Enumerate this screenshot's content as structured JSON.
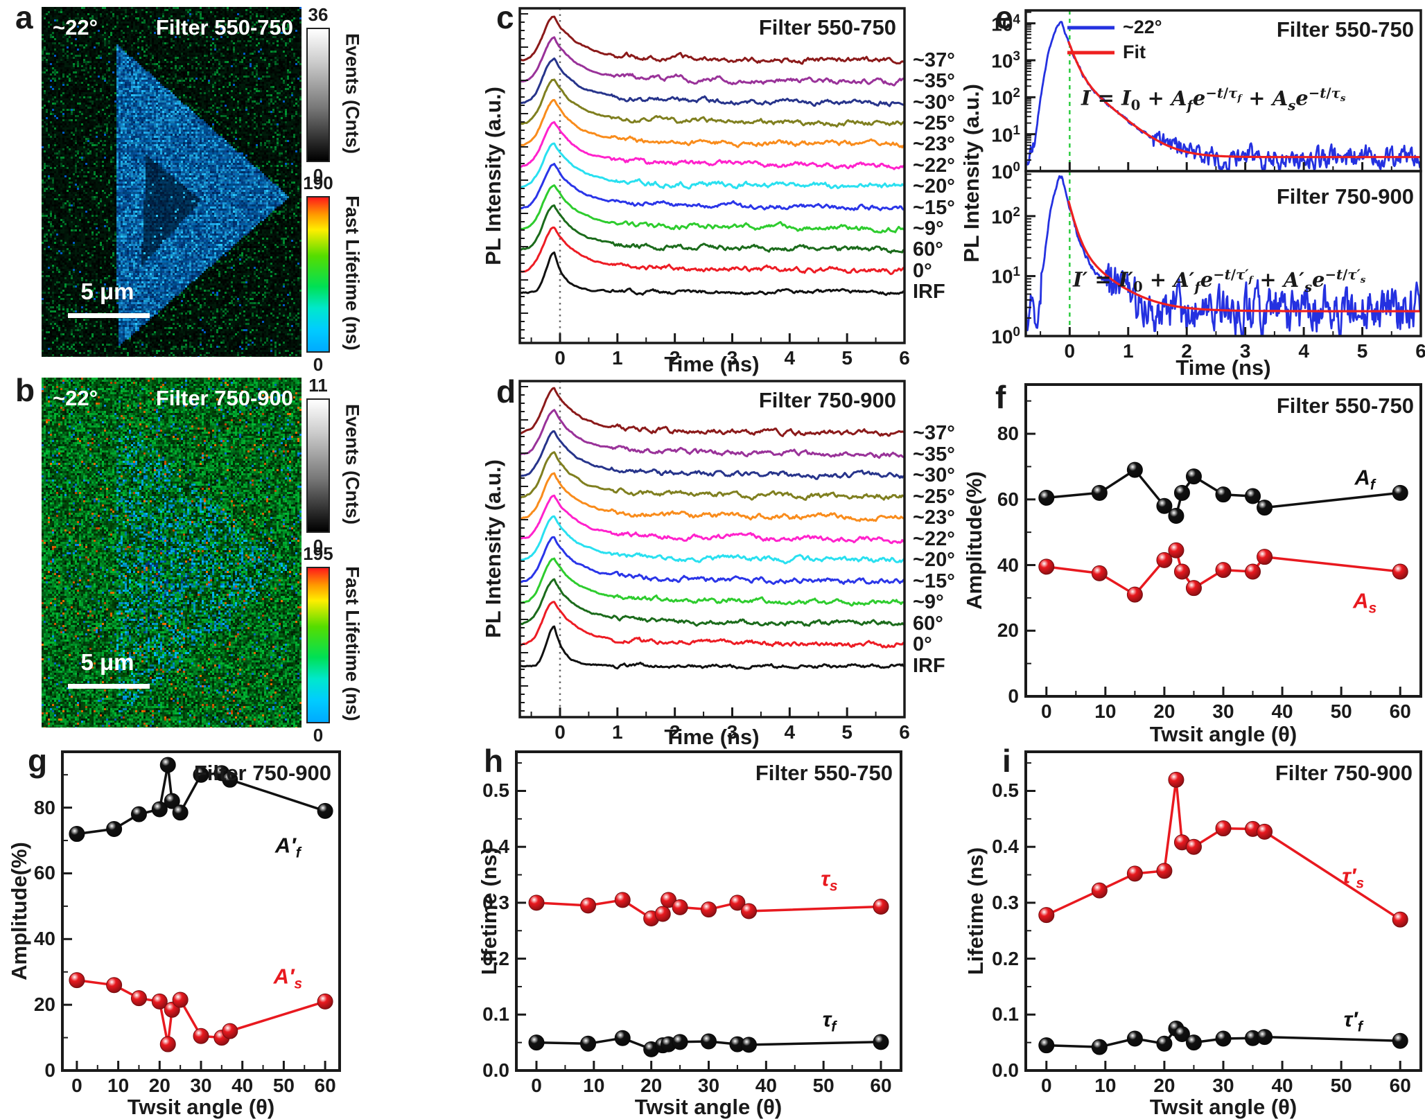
{
  "panels": {
    "a": {
      "letter": "a",
      "angle_label": "~22°",
      "filter": "Filter 550-750",
      "scalebar": "5 μm",
      "events_bar": {
        "max": "36",
        "min": "0",
        "label": "Events (Cnts)"
      },
      "lifetime_bar": {
        "max": "190",
        "min": "0",
        "label": "Fast Lifetime (ns)"
      }
    },
    "b": {
      "letter": "b",
      "angle_label": "~22°",
      "filter": "Filter 750-900",
      "scalebar": "5 μm",
      "events_bar": {
        "max": "11",
        "min": "0",
        "label": "Events (Cnts)"
      },
      "lifetime_bar": {
        "max": "195",
        "min": "0",
        "label": "Fast Lifetime (ns)"
      }
    },
    "c": {
      "letter": "c",
      "filter": "Filter 550-750",
      "xlabel": "Time (ns)",
      "ylabel": "PL Intensity (a.u.)"
    },
    "d": {
      "letter": "d",
      "filter": "Filter 750-900",
      "xlabel": "Time (ns)",
      "ylabel": "PL Intensity (a.u.)"
    },
    "e": {
      "letter": "e",
      "ylabel": "PL Intensity (a.u.)",
      "xlabel": "Time (ns)",
      "top": {
        "filter": "Filter 550-750",
        "legend": [
          {
            "label": "~22°",
            "color": "#2431E0"
          },
          {
            "label": "Fit",
            "color": "#EE2020"
          }
        ],
        "equation_html": "<i>I</i> = <i>I</i><sub>0</sub> + <i>A<sub>f</sub></i><i>e</i><sup>−<i>t</i>/<i>τ<sub>f</sub></i></sup> + <i>A<sub>s</sub></i><i>e</i><sup>−<i>t</i>/<i>τ<sub>s</sub></i></sup>"
      },
      "bottom": {
        "filter": "Filter 750-900",
        "equation_html": "<i>I′</i> = <i>I′</i><sub>0</sub> + <i>A′<sub>f</sub></i><i>e</i><sup>−<i>t</i>/<i>τ′<sub>f</sub></i></sup> + <i>A′<sub>s</sub></i><i>e</i><sup>−<i>t</i>/<i>τ′<sub>s</sub></i></sup>"
      }
    },
    "f": {
      "letter": "f",
      "filter": "Filter 550-750",
      "xlabel": "Twsit angle (θ)",
      "ylabel": "Amplitude(%)"
    },
    "g": {
      "letter": "g",
      "filter": "Filter 750-900",
      "xlabel": "Twsit angle (θ)",
      "ylabel": "Amplitude(%)"
    },
    "h": {
      "letter": "h",
      "filter": "Filter 550-750",
      "xlabel": "Twsit angle (θ)",
      "ylabel": "Lifetime (ns)"
    },
    "i": {
      "letter": "i",
      "filter": "Filter 750-900",
      "xlabel": "Twsit angle (θ)",
      "ylabel": "Lifetime (ns)"
    }
  },
  "chart_data": [
    {
      "id": "a",
      "type": "heatmap",
      "description": "Fluorescence lifetime image, triangular flake, blue on dark background",
      "angle": "~22°",
      "title": "Filter 550-750",
      "scalebar": "5 μm",
      "colorbars": [
        {
          "label": "Events (Cnts)",
          "min": 0,
          "max": 36
        },
        {
          "label": "Fast Lifetime (ns)",
          "min": 0,
          "max": 190
        }
      ]
    },
    {
      "id": "b",
      "type": "heatmap",
      "description": "Fluorescence lifetime image, faint triangular flake, green noise background",
      "angle": "~22°",
      "title": "Filter 750-900",
      "scalebar": "5 μm",
      "colorbars": [
        {
          "label": "Events (Cnts)",
          "min": 0,
          "max": 11
        },
        {
          "label": "Fast Lifetime (ns)",
          "min": 0,
          "max": 195
        }
      ]
    },
    {
      "id": "c",
      "type": "line",
      "title": "Filter 550-750",
      "xlabel": "Time (ns)",
      "ylabel": "PL Intensity (a.u.)",
      "xlim": [
        -0.7,
        6
      ],
      "xticks": [
        0,
        1,
        2,
        3,
        4,
        5,
        6
      ],
      "description": "Vertically offset normalized PL decay traces peaking at t≈0",
      "series": [
        {
          "label": "~37°",
          "color": "#8B1A1A"
        },
        {
          "label": "~35°",
          "color": "#993299"
        },
        {
          "label": "~30°",
          "color": "#27348B"
        },
        {
          "label": "~25°",
          "color": "#7F7F1F"
        },
        {
          "label": "~23°",
          "color": "#F98C1C"
        },
        {
          "label": "~22°",
          "color": "#FF22CC"
        },
        {
          "label": "~20°",
          "color": "#29E0F0"
        },
        {
          "label": "~15°",
          "color": "#2A35E8"
        },
        {
          "label": "~9°",
          "color": "#2ECC2E"
        },
        {
          "label": "60°",
          "color": "#1B6B1B"
        },
        {
          "label": "0°",
          "color": "#ED1C24"
        },
        {
          "label": "IRF",
          "color": "#111111"
        }
      ]
    },
    {
      "id": "d",
      "type": "line",
      "title": "Filter 750-900",
      "xlabel": "Time (ns)",
      "ylabel": "PL Intensity (a.u.)",
      "xlim": [
        -0.7,
        6
      ],
      "xticks": [
        0,
        1,
        2,
        3,
        4,
        5,
        6
      ],
      "description": "Vertically offset normalized PL decay traces peaking at t≈0",
      "series": [
        {
          "label": "~37°",
          "color": "#8B1A1A"
        },
        {
          "label": "~35°",
          "color": "#993299"
        },
        {
          "label": "~30°",
          "color": "#27348B"
        },
        {
          "label": "~25°",
          "color": "#7F7F1F"
        },
        {
          "label": "~23°",
          "color": "#F98C1C"
        },
        {
          "label": "~22°",
          "color": "#FF22CC"
        },
        {
          "label": "~20°",
          "color": "#29E0F0"
        },
        {
          "label": "~15°",
          "color": "#2A35E8"
        },
        {
          "label": "~9°",
          "color": "#2ECC2E"
        },
        {
          "label": "60°",
          "color": "#1B6B1B"
        },
        {
          "label": "0°",
          "color": "#ED1C24"
        },
        {
          "label": "IRF",
          "color": "#111111"
        }
      ]
    },
    {
      "id": "e",
      "type": "line",
      "xlabel": "Time (ns)",
      "xlim": [
        -0.75,
        6
      ],
      "xticks": [
        0,
        1,
        2,
        3,
        4,
        5,
        6
      ],
      "data_color": "#2431E0",
      "fit_color": "#EE2020",
      "zero_line_color": "#2ECC40",
      "panels": [
        {
          "filter": "Filter 550-750",
          "yscale": "log",
          "ytick_exponents": [
            0,
            1,
            2,
            3,
            4
          ],
          "peak": 10000,
          "baseline": 2.4,
          "equation": "I = I0 + Af e^(−t/τf) + As e^(−t/τs)"
        },
        {
          "filter": "Filter 750-900",
          "yscale": "log",
          "ytick_exponents": [
            0,
            1,
            2
          ],
          "peak": 450,
          "baseline": 2.5,
          "equation": "I′ = I′0 + A′f e^(−t/τ′f) + A′s e^(−t/τ′s)"
        }
      ]
    },
    {
      "id": "f",
      "type": "scatter",
      "title": "Filter 550-750",
      "xlabel": "Twsit angle (θ)",
      "ylabel": "Amplitude(%)",
      "xlim": [
        -3.5,
        63.5
      ],
      "ylim": [
        0,
        95
      ],
      "xticks": [
        0,
        10,
        20,
        30,
        40,
        50,
        60
      ],
      "yticks": [
        0,
        20,
        40,
        60,
        80
      ],
      "x": [
        0,
        9,
        15,
        20,
        22,
        23,
        25,
        30,
        35,
        37,
        60
      ],
      "series": [
        {
          "name": "Af",
          "label_html": "<i>A<sub>f</sub></i>",
          "color": "#111111",
          "values": [
            60.5,
            62,
            69,
            58,
            55,
            62,
            67,
            61.5,
            61,
            57.5,
            62
          ],
          "label_at": [
            54,
            66
          ]
        },
        {
          "name": "As",
          "label_html": "<i>A<sub>s</sub></i>",
          "color": "#E8191F",
          "values": [
            39.5,
            37.5,
            31,
            41.5,
            44.5,
            38,
            33,
            38.5,
            38,
            42.5,
            38
          ],
          "label_at": [
            54,
            28.5
          ]
        }
      ]
    },
    {
      "id": "g",
      "type": "scatter",
      "title": "Filter 750-900",
      "xlabel": "Twsit angle (θ)",
      "ylabel": "Amplitude(%)",
      "xlim": [
        -3.5,
        63.5
      ],
      "ylim": [
        0,
        97
      ],
      "xticks": [
        0,
        10,
        20,
        30,
        40,
        50,
        60
      ],
      "yticks": [
        0,
        20,
        40,
        60,
        80
      ],
      "x": [
        0,
        9,
        15,
        20,
        22,
        23,
        25,
        30,
        35,
        37,
        60
      ],
      "series": [
        {
          "name": "A'f",
          "label_html": "<i>A′<sub>f</sub></i>",
          "color": "#111111",
          "values": [
            72,
            73.5,
            78,
            79.5,
            93,
            82,
            78.5,
            90,
            90.5,
            88.5,
            79
          ],
          "label_at": [
            51,
            68
          ]
        },
        {
          "name": "A's",
          "label_html": "<i>A′<sub>s</sub></i>",
          "color": "#E8191F",
          "values": [
            27.5,
            26,
            22,
            21,
            8,
            18.5,
            21.5,
            10.5,
            10,
            12,
            21
          ],
          "label_at": [
            51,
            28
          ]
        }
      ]
    },
    {
      "id": "h",
      "type": "scatter",
      "title": "Filter 550-750",
      "xlabel": "Twsit angle (θ)",
      "ylabel": "Lifetime (ns)",
      "xlim": [
        -3.5,
        63.5
      ],
      "ylim": [
        0,
        0.57
      ],
      "xticks": [
        0,
        10,
        20,
        30,
        40,
        50,
        60
      ],
      "yticks": [
        0,
        0.1,
        0.2,
        0.3,
        0.4,
        0.5
      ],
      "x": [
        0,
        9,
        15,
        20,
        22,
        23,
        25,
        30,
        35,
        37,
        60
      ],
      "series": [
        {
          "name": "τs",
          "label_html": "<i>τ<sub>s</sub></i>",
          "color": "#E8191F",
          "values": [
            0.3,
            0.295,
            0.305,
            0.272,
            0.28,
            0.305,
            0.292,
            0.288,
            0.3,
            0.285,
            0.293
          ],
          "label_at": [
            51,
            0.34
          ]
        },
        {
          "name": "τf",
          "label_html": "<i>τ<sub>f</sub></i>",
          "color": "#111111",
          "values": [
            0.05,
            0.048,
            0.058,
            0.038,
            0.045,
            0.047,
            0.051,
            0.052,
            0.047,
            0.046,
            0.051
          ],
          "label_at": [
            51,
            0.088
          ]
        }
      ]
    },
    {
      "id": "i",
      "type": "scatter",
      "title": "Filter 750-900",
      "xlabel": "Twsit angle (θ)",
      "ylabel": "Lifetime (ns)",
      "xlim": [
        -3.5,
        63.5
      ],
      "ylim": [
        0,
        0.57
      ],
      "xticks": [
        0,
        10,
        20,
        30,
        40,
        50,
        60
      ],
      "yticks": [
        0,
        0.1,
        0.2,
        0.3,
        0.4,
        0.5
      ],
      "x": [
        0,
        9,
        15,
        20,
        22,
        23,
        25,
        30,
        35,
        37,
        60
      ],
      "series": [
        {
          "name": "τ's",
          "label_html": "<i>τ′<sub>s</sub></i>",
          "color": "#E8191F",
          "values": [
            0.278,
            0.322,
            0.352,
            0.357,
            0.52,
            0.408,
            0.4,
            0.433,
            0.432,
            0.427,
            0.27
          ],
          "label_at": [
            52,
            0.345
          ]
        },
        {
          "name": "τ'f",
          "label_html": "<i>τ′<sub>f</sub></i>",
          "color": "#111111",
          "values": [
            0.045,
            0.042,
            0.057,
            0.048,
            0.075,
            0.065,
            0.05,
            0.057,
            0.058,
            0.06,
            0.053
          ],
          "label_at": [
            52,
            0.088
          ]
        }
      ]
    }
  ]
}
